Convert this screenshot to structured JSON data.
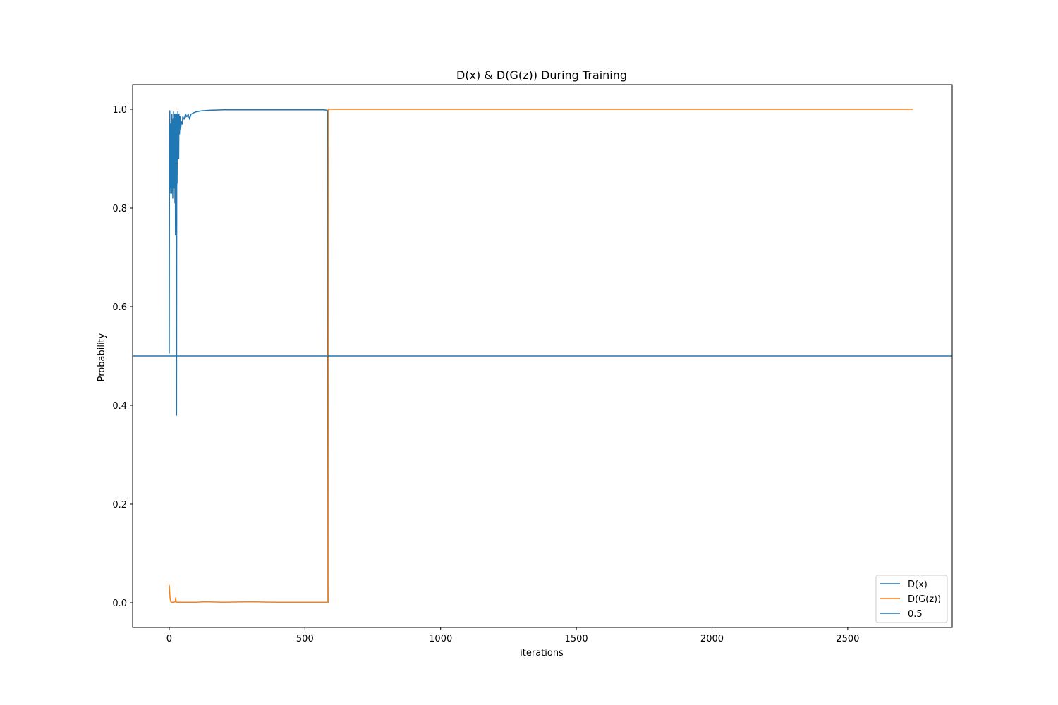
{
  "chart_data": {
    "type": "line",
    "title": "D(x) & D(G(z)) During Training",
    "xlabel": "iterations",
    "ylabel": "Probability",
    "xlim": [
      -135,
      2885
    ],
    "ylim": [
      -0.05,
      1.05
    ],
    "xticks": [
      0,
      500,
      1000,
      1500,
      2000,
      2500
    ],
    "xtick_labels": [
      "0",
      "500",
      "1000",
      "1500",
      "2000",
      "2500"
    ],
    "yticks": [
      0.0,
      0.2,
      0.4,
      0.6,
      0.8,
      1.0
    ],
    "ytick_labels": [
      "0.0",
      "0.2",
      "0.4",
      "0.6",
      "0.8",
      "1.0"
    ],
    "legend_position": "lower-right",
    "series": [
      {
        "name": "D(x)",
        "color": "#1f77b4",
        "points": [
          [
            0,
            0.505
          ],
          [
            1,
            0.9
          ],
          [
            2,
            0.997
          ],
          [
            3,
            0.83
          ],
          [
            4,
            0.96
          ],
          [
            5,
            0.84
          ],
          [
            6,
            0.97
          ],
          [
            7,
            0.88
          ],
          [
            8,
            0.95
          ],
          [
            9,
            0.83
          ],
          [
            10,
            0.99
          ],
          [
            11,
            0.9
          ],
          [
            12,
            0.96
          ],
          [
            13,
            0.82
          ],
          [
            14,
            0.98
          ],
          [
            15,
            0.87
          ],
          [
            16,
            0.995
          ],
          [
            17,
            0.84
          ],
          [
            18,
            0.97
          ],
          [
            19,
            0.9
          ],
          [
            20,
            0.99
          ],
          [
            21,
            0.81
          ],
          [
            22,
            0.96
          ],
          [
            23,
            0.745
          ],
          [
            24,
            0.99
          ],
          [
            25,
            0.86
          ],
          [
            26,
            0.98
          ],
          [
            27,
            0.38
          ],
          [
            28,
            0.99
          ],
          [
            29,
            0.85
          ],
          [
            30,
            0.97
          ],
          [
            31,
            0.9
          ],
          [
            32,
            0.995
          ],
          [
            33,
            0.93
          ],
          [
            34,
            0.98
          ],
          [
            35,
            0.9
          ],
          [
            36,
            0.99
          ],
          [
            38,
            0.95
          ],
          [
            40,
            0.985
          ],
          [
            42,
            0.96
          ],
          [
            45,
            0.975
          ],
          [
            48,
            0.97
          ],
          [
            50,
            0.985
          ],
          [
            55,
            0.98
          ],
          [
            60,
            0.99
          ],
          [
            65,
            0.985
          ],
          [
            70,
            0.99
          ],
          [
            75,
            0.98
          ],
          [
            80,
            0.99
          ],
          [
            90,
            0.993
          ],
          [
            100,
            0.995
          ],
          [
            120,
            0.997
          ],
          [
            150,
            0.998
          ],
          [
            200,
            0.999
          ],
          [
            300,
            0.999
          ],
          [
            400,
            0.999
          ],
          [
            500,
            0.999
          ],
          [
            570,
            0.999
          ],
          [
            583,
            0.998
          ],
          [
            585,
            0.0
          ],
          [
            587,
            0.0
          ]
        ]
      },
      {
        "name": "D(G(z))",
        "color": "#ff7f0e",
        "points": [
          [
            0,
            0.036
          ],
          [
            3,
            0.01
          ],
          [
            5,
            0.003
          ],
          [
            8,
            0.001
          ],
          [
            15,
            0.001
          ],
          [
            22,
            0.002
          ],
          [
            24,
            0.01
          ],
          [
            26,
            0.001
          ],
          [
            50,
            0.001
          ],
          [
            100,
            0.001
          ],
          [
            130,
            0.002
          ],
          [
            200,
            0.001
          ],
          [
            300,
            0.002
          ],
          [
            400,
            0.001
          ],
          [
            500,
            0.001
          ],
          [
            585,
            0.001
          ],
          [
            586,
            0.67
          ],
          [
            587,
            1.0
          ],
          [
            2740,
            1.0
          ]
        ]
      },
      {
        "name": "0.5",
        "color": "#1f77b4",
        "hline": 0.5
      }
    ]
  }
}
